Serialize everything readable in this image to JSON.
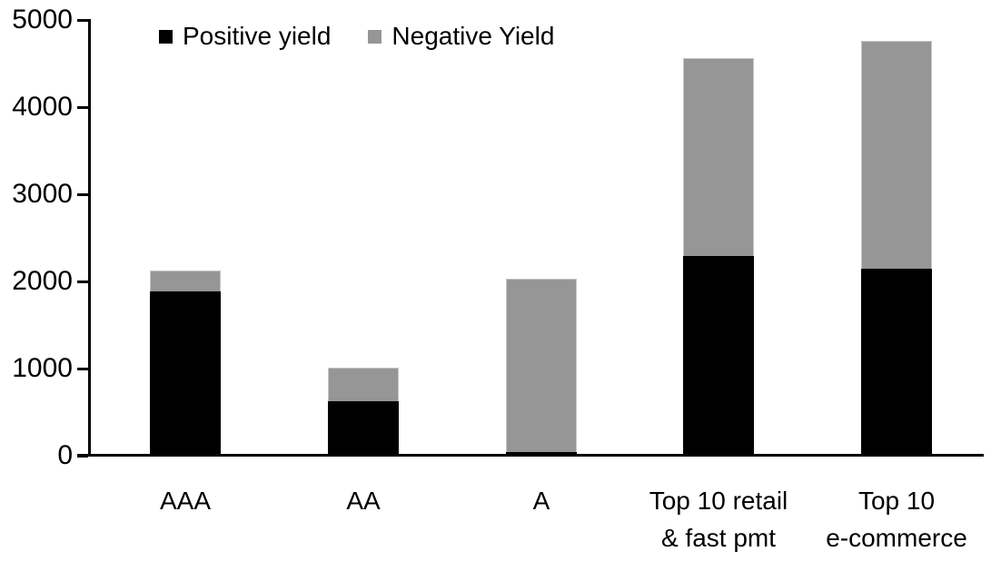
{
  "chart_data": {
    "type": "bar",
    "stacked": true,
    "title": "",
    "xlabel": "",
    "ylabel": "",
    "categories": [
      "AAA",
      "AA",
      "A",
      "Top 10 retail\n& fast pmt",
      "Top 10\ne-commerce"
    ],
    "series": [
      {
        "name": "Positive yield",
        "color": "#000000",
        "values": [
          1890,
          620,
          40,
          2290,
          2150
        ]
      },
      {
        "name": "Negative Yield",
        "color": "#969696",
        "values": [
          230,
          390,
          1990,
          2270,
          2610
        ]
      }
    ],
    "stack_totals": [
      2120,
      1010,
      2030,
      4560,
      4760
    ],
    "ylim": [
      0,
      5000
    ],
    "yticks": [
      0,
      1000,
      2000,
      3000,
      4000,
      5000
    ],
    "grid": false,
    "legend_position": "top-inside",
    "axis_color": "#000000",
    "background": "#ffffff"
  }
}
